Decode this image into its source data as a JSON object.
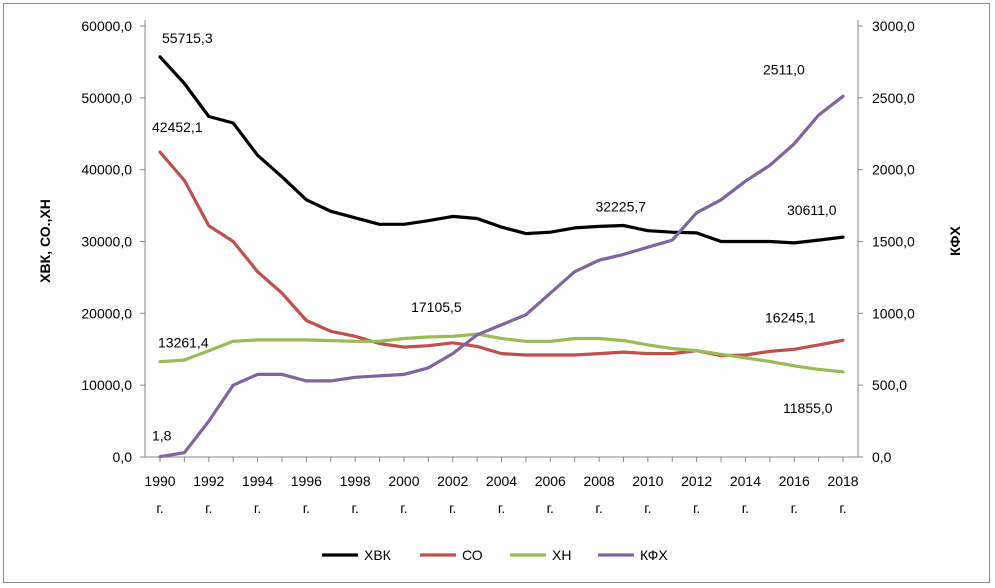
{
  "chart_data": {
    "type": "line",
    "title": "",
    "xlabel": "",
    "ylabel_left": "ХВК, СО.,ХН",
    "ylabel_right": "КФХ",
    "ylim_left": [
      0,
      60000
    ],
    "ylim_right": [
      0,
      3000
    ],
    "y_ticks_left": [
      "0,0",
      "10000,0",
      "20000,0",
      "30000,0",
      "40000,0",
      "50000,0",
      "60000,0"
    ],
    "y_ticks_right": [
      "0,0",
      "500,0",
      "1000,0",
      "1500,0",
      "2000,0",
      "2500,0",
      "3000,0"
    ],
    "x_tick_years": [
      "1990",
      "1992",
      "1994",
      "1996",
      "1998",
      "2000",
      "2002",
      "2004",
      "2006",
      "2008",
      "2010",
      "2012",
      "2014",
      "2016",
      "2018"
    ],
    "x_tick_suffix": "г.",
    "x": [
      1990,
      1991,
      1992,
      1993,
      1994,
      1995,
      1996,
      1997,
      1998,
      1999,
      2000,
      2001,
      2002,
      2003,
      2004,
      2005,
      2006,
      2007,
      2008,
      2009,
      2010,
      2011,
      2012,
      2013,
      2014,
      2015,
      2016,
      2017,
      2018
    ],
    "series": [
      {
        "name": "ХВК",
        "axis": "left",
        "color": "#000000",
        "values": [
          55715.3,
          52000,
          47400,
          46500,
          42000,
          39000,
          35800,
          34200,
          33300,
          32400,
          32400,
          32900,
          33500,
          33200,
          32000,
          31100,
          31300,
          31900,
          32100,
          32225.7,
          31500,
          31300,
          31200,
          30000,
          30000,
          30000,
          29800,
          30200,
          30611.0
        ]
      },
      {
        "name": "СО",
        "axis": "left",
        "color": "#c0504d",
        "values": [
          42452.1,
          38500,
          32200,
          30000,
          25800,
          22800,
          19000,
          17500,
          16800,
          15800,
          15300,
          15500,
          15900,
          15400,
          14400,
          14200,
          14200,
          14200,
          14400,
          14600,
          14400,
          14400,
          14800,
          14100,
          14200,
          14700,
          15000,
          15600,
          16245.1
        ]
      },
      {
        "name": "ХН",
        "axis": "left",
        "color": "#9bbb59",
        "values": [
          13261.4,
          13500,
          14800,
          16100,
          16300,
          16300,
          16300,
          16200,
          16100,
          16100,
          16500,
          16700,
          16800,
          17105.5,
          16500,
          16100,
          16100,
          16500,
          16500,
          16200,
          15600,
          15100,
          14800,
          14300,
          13800,
          13300,
          12700,
          12200,
          11855.0
        ]
      },
      {
        "name": "КФХ",
        "axis": "right",
        "color": "#8064a2",
        "values": [
          1.8,
          30,
          250,
          500,
          575,
          575,
          530,
          530,
          555,
          565,
          575,
          620,
          720,
          850,
          920,
          990,
          1140,
          1290,
          1370,
          1410,
          1460,
          1510,
          1700,
          1790,
          1920,
          2030,
          2180,
          2380,
          2511.0
        ]
      }
    ],
    "annotations": [
      {
        "series": "ХВК",
        "year": 1990,
        "text": "55715,3"
      },
      {
        "series": "ХВК",
        "year": 2009,
        "text": "32225,7"
      },
      {
        "series": "ХВК",
        "year": 2018,
        "text": "30611,0"
      },
      {
        "series": "СО",
        "year": 1990,
        "text": "42452,1"
      },
      {
        "series": "СО",
        "year": 2018,
        "text": "16245,1"
      },
      {
        "series": "ХН",
        "year": 1990,
        "text": "13261,4"
      },
      {
        "series": "ХН",
        "year": 2003,
        "text": "17105,5"
      },
      {
        "series": "ХН",
        "year": 2018,
        "text": "11855,0"
      },
      {
        "series": "КФХ",
        "year": 1990,
        "text": "1,8"
      },
      {
        "series": "КФХ",
        "year": 2018,
        "text": "2511,0"
      }
    ],
    "legend": {
      "position": "bottom",
      "items": [
        "ХВК",
        "СО",
        "ХН",
        "КФХ"
      ]
    },
    "grid": false
  }
}
